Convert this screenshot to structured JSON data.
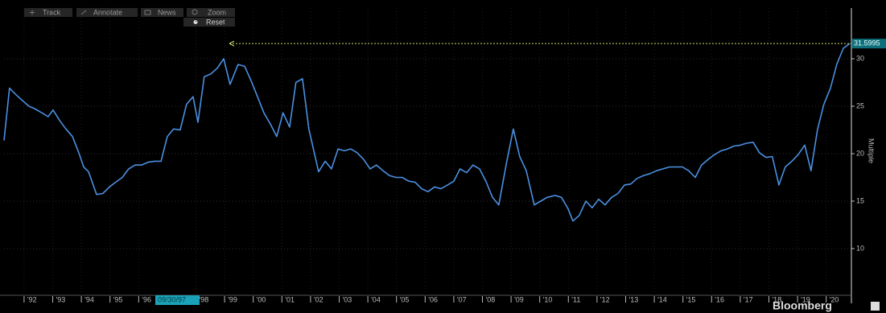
{
  "chart_data": {
    "type": "line",
    "toolbar": [
      "Track",
      "Annotate",
      "News",
      "Zoom"
    ],
    "reset_button": "Reset",
    "y_axis_label": "Multiple",
    "branding": "Bloomberg",
    "crosshair_date": "09/30/97",
    "annotation": {
      "label": "31.5995",
      "value": 31.5995,
      "color": "#c8e06a"
    },
    "x": [
      1991.3,
      1991.49,
      1991.72,
      1991.94,
      1992.17,
      1992.39,
      1992.62,
      1992.84,
      1993.01,
      1993.24,
      1993.46,
      1993.69,
      1993.91,
      1994.08,
      1994.25,
      1994.53,
      1994.75,
      1994.98,
      1995.2,
      1995.43,
      1995.65,
      1995.88,
      1996.1,
      1996.33,
      1996.55,
      1996.78,
      1997.0,
      1997.22,
      1997.45,
      1997.67,
      1997.9,
      1998.07,
      1998.29,
      1998.52,
      1998.74,
      1998.97,
      1999.19,
      1999.47,
      1999.7,
      1999.92,
      2000.15,
      2000.37,
      2000.6,
      2000.82,
      2001.04,
      2001.27,
      2001.49,
      2001.72,
      2001.94,
      2002.28,
      2002.51,
      2002.73,
      2002.96,
      2003.18,
      2003.4,
      2003.63,
      2003.85,
      2004.08,
      2004.3,
      2004.53,
      2004.75,
      2004.98,
      2005.2,
      2005.43,
      2005.65,
      2005.88,
      2006.1,
      2006.33,
      2006.55,
      2006.78,
      2007.0,
      2007.22,
      2007.45,
      2007.67,
      2007.9,
      2008.12,
      2008.35,
      2008.57,
      2008.85,
      2009.08,
      2009.3,
      2009.53,
      2009.81,
      2010.03,
      2010.26,
      2010.54,
      2010.76,
      2010.99,
      2011.16,
      2011.38,
      2011.61,
      2011.83,
      2012.06,
      2012.28,
      2012.51,
      2012.73,
      2012.96,
      2013.18,
      2013.4,
      2013.63,
      2013.85,
      2014.08,
      2014.3,
      2014.53,
      2014.75,
      2014.98,
      2015.2,
      2015.43,
      2015.65,
      2015.88,
      2016.1,
      2016.33,
      2016.55,
      2016.78,
      2017.0,
      2017.22,
      2017.45,
      2017.67,
      2017.9,
      2018.12,
      2018.35,
      2018.57,
      2018.8,
      2019.02,
      2019.25,
      2019.47,
      2019.7,
      2019.92,
      2020.15,
      2020.37,
      2020.6,
      2020.82
    ],
    "series": [
      {
        "color": "#4a90e2",
        "values": [
          21.4,
          26.9,
          26.2,
          25.6,
          25.0,
          24.7,
          24.3,
          23.9,
          24.6,
          23.5,
          22.6,
          21.8,
          20.1,
          18.6,
          18.1,
          15.7,
          15.8,
          16.5,
          17.0,
          17.5,
          18.4,
          18.8,
          18.8,
          19.1,
          19.2,
          19.2,
          21.8,
          22.6,
          22.5,
          25.2,
          26.0,
          23.3,
          28.1,
          28.4,
          29.0,
          30.0,
          27.3,
          29.4,
          29.2,
          27.7,
          26.0,
          24.3,
          23.1,
          21.8,
          24.3,
          22.8,
          27.5,
          27.9,
          22.6,
          18.1,
          19.2,
          18.4,
          20.5,
          20.3,
          20.5,
          20.1,
          19.4,
          18.4,
          18.8,
          18.2,
          17.7,
          17.5,
          17.5,
          17.1,
          17.0,
          16.3,
          16.0,
          16.5,
          16.3,
          16.7,
          17.1,
          18.4,
          18.0,
          18.8,
          18.4,
          17.1,
          15.4,
          14.6,
          19.2,
          22.6,
          19.7,
          18.2,
          14.6,
          15.0,
          15.4,
          15.6,
          15.4,
          14.2,
          12.9,
          13.5,
          15.0,
          14.3,
          15.2,
          14.6,
          15.4,
          15.8,
          16.7,
          16.8,
          17.4,
          17.7,
          17.9,
          18.2,
          18.4,
          18.6,
          18.6,
          18.6,
          18.2,
          17.5,
          18.8,
          19.4,
          19.9,
          20.3,
          20.5,
          20.8,
          20.9,
          21.1,
          21.2,
          20.1,
          19.6,
          19.7,
          16.7,
          18.6,
          19.2,
          19.9,
          20.9,
          18.2,
          22.6,
          25.2,
          26.9,
          29.4,
          31.1,
          31.5995
        ]
      }
    ],
    "xlim": [
      1991.3,
      2020.88
    ],
    "xticks": [
      {
        "value": 1992,
        "label": "'92"
      },
      {
        "value": 1993,
        "label": "'93"
      },
      {
        "value": 1994,
        "label": "'94"
      },
      {
        "value": 1995,
        "label": "'95"
      },
      {
        "value": 1996,
        "label": "'96"
      },
      {
        "value": 1998,
        "label": "'98"
      },
      {
        "value": 1999,
        "label": "'99"
      },
      {
        "value": 2000,
        "label": "'00"
      },
      {
        "value": 2001,
        "label": "'01"
      },
      {
        "value": 2002,
        "label": "'02"
      },
      {
        "value": 2003,
        "label": "'03"
      },
      {
        "value": 2004,
        "label": "'04"
      },
      {
        "value": 2005,
        "label": "'05"
      },
      {
        "value": 2006,
        "label": "'06"
      },
      {
        "value": 2007,
        "label": "'07"
      },
      {
        "value": 2008,
        "label": "'08"
      },
      {
        "value": 2009,
        "label": "'09"
      },
      {
        "value": 2010,
        "label": "'10"
      },
      {
        "value": 2011,
        "label": "'11"
      },
      {
        "value": 2012,
        "label": "'12"
      },
      {
        "value": 2013,
        "label": "'13"
      },
      {
        "value": 2014,
        "label": "'14"
      },
      {
        "value": 2015,
        "label": "'15"
      },
      {
        "value": 2016,
        "label": "'16"
      },
      {
        "value": 2017,
        "label": "'17"
      },
      {
        "value": 2018,
        "label": "'18"
      },
      {
        "value": 2019,
        "label": "'19"
      },
      {
        "value": 2020,
        "label": "'20"
      }
    ],
    "ylim": [
      5.25,
      35.34
    ],
    "yticks": [
      10,
      15,
      20,
      25,
      30
    ],
    "grid": true
  }
}
